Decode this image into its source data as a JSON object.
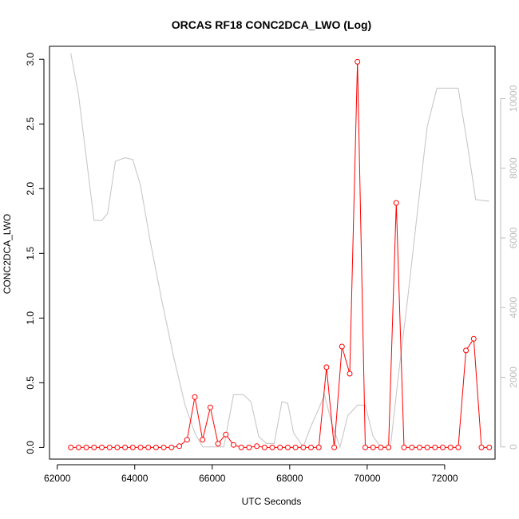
{
  "chart_data": {
    "type": "line",
    "title": "ORCAS RF18 CONC2DCA_LWO (Log)",
    "xlabel": "UTC Seconds",
    "ylabel": "CONC2DCA_LWO",
    "xlim": [
      61800,
      73300
    ],
    "ylim": [
      -0.09,
      3.1
    ],
    "y2lim": [
      -350,
      11500
    ],
    "x_ticks": [
      62000,
      64000,
      66000,
      68000,
      70000,
      72000
    ],
    "y_ticks": [
      0.0,
      0.5,
      1.0,
      1.5,
      2.0,
      2.5,
      3.0
    ],
    "y2_ticks": [
      0,
      2000,
      4000,
      6000,
      8000,
      10000
    ],
    "colors": {
      "primary": "#ff0000",
      "secondary": "#c8c8c8",
      "secondary_axis": "#bdbdbd",
      "axis": "#000000"
    },
    "series": [
      {
        "axis": "left",
        "markers": "open-circle",
        "x": [
          62350,
          62550,
          62750,
          62950,
          63150,
          63350,
          63550,
          63750,
          63950,
          64150,
          64350,
          64550,
          64750,
          64950,
          65150,
          65350,
          65550,
          65750,
          65950,
          66150,
          66350,
          66550,
          66750,
          66950,
          67150,
          67350,
          67550,
          67750,
          67950,
          68150,
          68350,
          68550,
          68750,
          68950,
          69150,
          69350,
          69550,
          69750,
          69950,
          70150,
          70350,
          70550,
          70750,
          70950,
          71150,
          71350,
          71550,
          71750,
          71950,
          72150,
          72350,
          72550,
          72750,
          72950,
          73150
        ],
        "y": [
          0,
          0,
          0,
          0,
          0,
          0,
          0,
          0,
          0,
          0,
          0,
          0,
          0,
          0,
          0.01,
          0.06,
          0.39,
          0.06,
          0.31,
          0.03,
          0.1,
          0.02,
          0,
          0,
          0.01,
          0,
          0,
          0,
          0,
          0,
          0,
          0,
          0,
          0.62,
          0,
          0.78,
          0.57,
          2.98,
          0,
          0,
          0,
          0,
          1.89,
          0,
          0,
          0,
          0,
          0,
          0,
          0,
          0,
          0.75,
          0.84,
          0,
          0
        ]
      },
      {
        "axis": "right",
        "markers": "none",
        "x": [
          62350,
          62550,
          62950,
          63150,
          63300,
          63500,
          63750,
          63950,
          64150,
          64400,
          64700,
          65000,
          65300,
          65550,
          65750,
          66000,
          66300,
          66550,
          66800,
          67000,
          67200,
          67400,
          67600,
          67800,
          67950,
          68100,
          68350,
          68550,
          68750,
          68900,
          69100,
          69300,
          69500,
          69750,
          69950,
          70150,
          70350,
          70600,
          70800,
          71050,
          71300,
          71550,
          71800,
          72000,
          72350,
          72600,
          72800,
          73150
        ],
        "y": [
          11300,
          10100,
          6500,
          6500,
          6700,
          8200,
          8300,
          8250,
          7500,
          5900,
          4200,
          2600,
          1200,
          400,
          0,
          0,
          0,
          1500,
          1500,
          1300,
          300,
          100,
          100,
          1300,
          1250,
          400,
          0,
          600,
          1100,
          1500,
          600,
          0,
          900,
          1200,
          1200,
          300,
          0,
          0,
          2000,
          4300,
          6800,
          9200,
          10300,
          10300,
          10300,
          8600,
          7100,
          7050
        ]
      }
    ]
  }
}
